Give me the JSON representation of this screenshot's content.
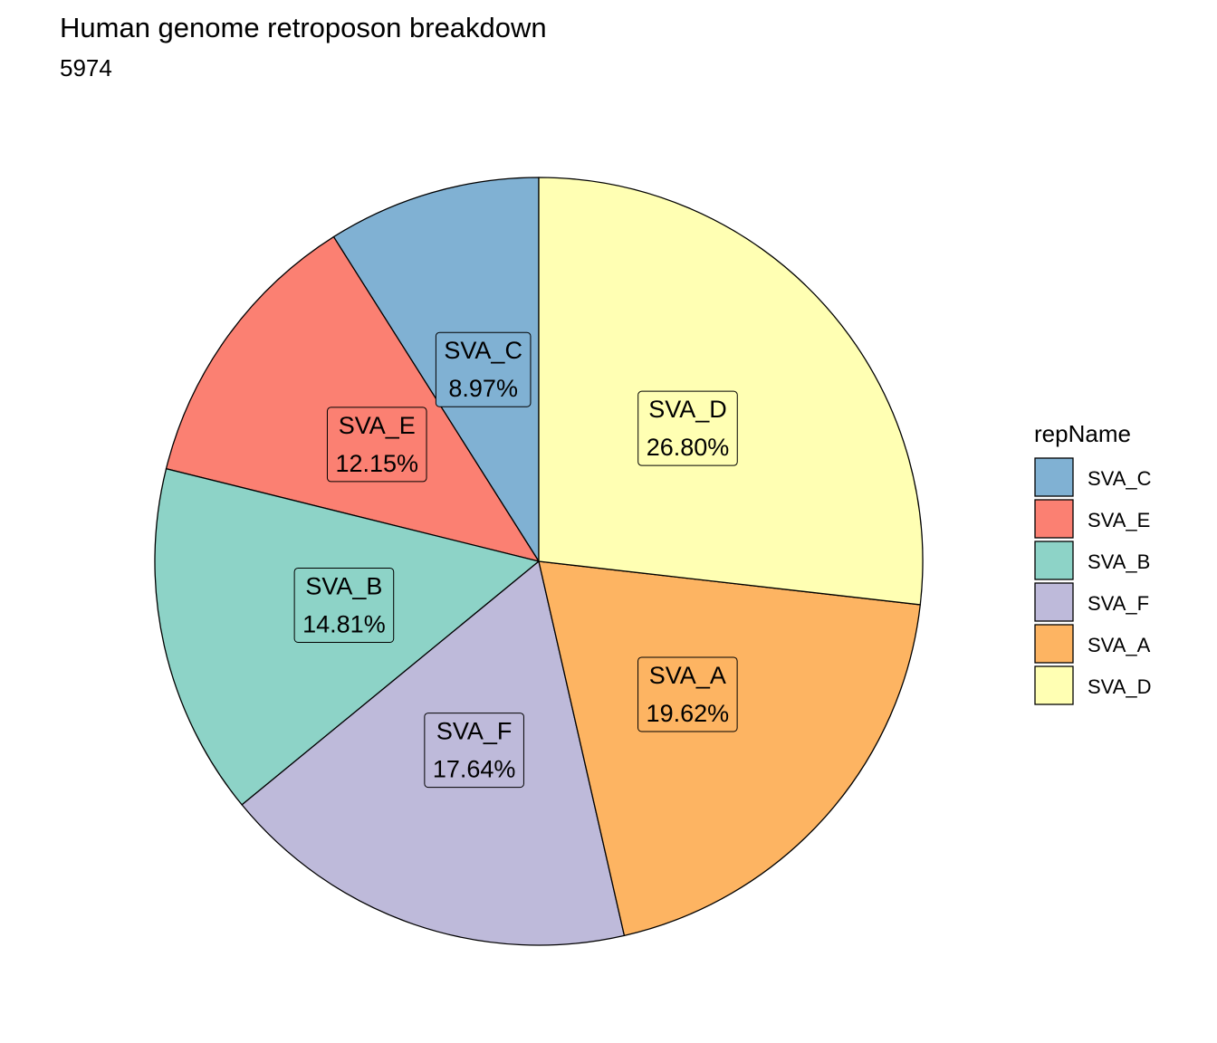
{
  "chart_data": {
    "type": "pie",
    "title": "Human genome retroposon breakdown",
    "subtitle": "5974",
    "legend_title": "repName",
    "legend_placement": "right",
    "categories": [
      "SVA_C",
      "SVA_E",
      "SVA_B",
      "SVA_F",
      "SVA_A",
      "SVA_D"
    ],
    "values": [
      8.97,
      12.15,
      14.81,
      17.64,
      19.62,
      26.8
    ],
    "labels": [
      "8.97%",
      "12.15%",
      "14.81%",
      "17.64%",
      "19.62%",
      "26.80%"
    ],
    "colors": [
      "#80B1D3",
      "#FB8072",
      "#8DD3C7",
      "#BEBADA",
      "#FDB462",
      "#FFFFB3"
    ],
    "unit": "%"
  }
}
